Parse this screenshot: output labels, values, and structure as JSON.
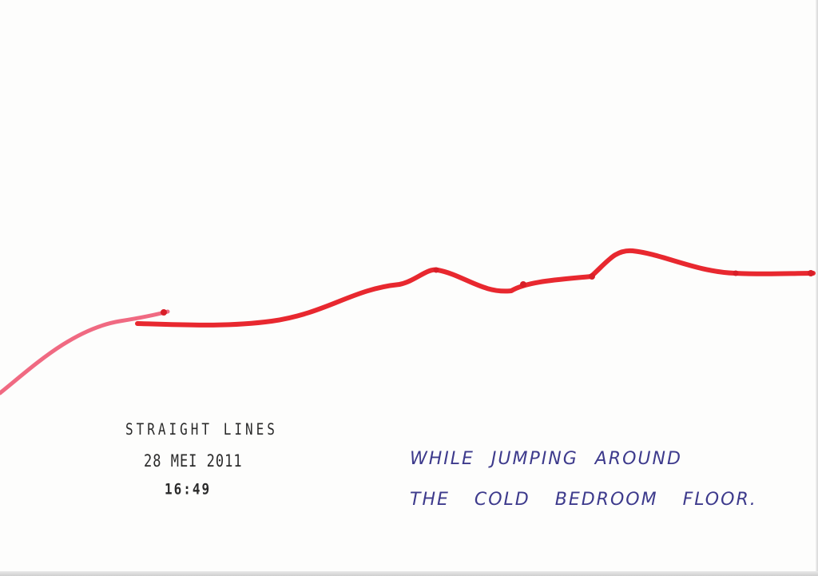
{
  "stamp": {
    "title": "STRAIGHT LINES",
    "date": "28 MEI 2011",
    "time": "16:49"
  },
  "handwriting": {
    "line1": "WHILE JUMPING AROUND",
    "line2": "THE COLD BEDROOM FLOOR."
  },
  "colors": {
    "line": "#e8282f",
    "line_light": "#f06a82",
    "ink": "#3d3a8c",
    "stamp": "#2a2a2a"
  }
}
